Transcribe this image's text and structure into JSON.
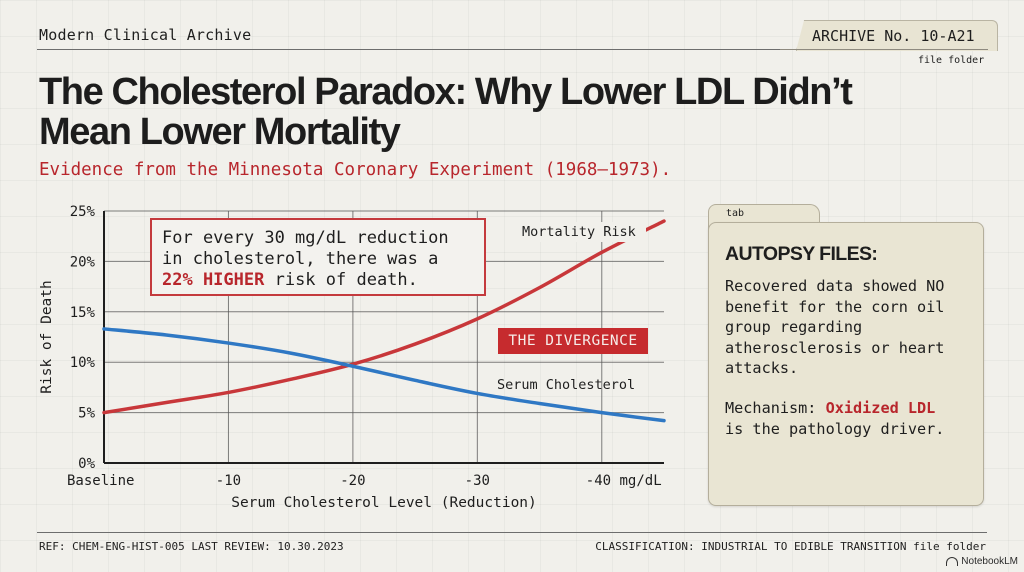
{
  "header": {
    "archive_name": "Modern Clinical Archive",
    "archive_number": "ARCHIVE No. 10-A21",
    "folder_note": "file folder"
  },
  "title": "The Cholesterol Paradox: Why Lower LDL Didn’t Mean Lower Mortality",
  "subtitle": "Evidence from the Minnesota Coronary Experiment (1968–1973).",
  "callout": {
    "text_pre": "For every 30 mg/dL reduction\nin cholesterol, there was a\n",
    "highlight": "22% HIGHER",
    "text_post": " risk of death."
  },
  "divergence_label": "THE DIVERGENCE",
  "colors": {
    "accent_red": "#c62b2e",
    "mortality_line": "#c8373a",
    "cholesterol_line": "#2f78c4",
    "card_bg": "#e9e5d3"
  },
  "chart_data": {
    "type": "line",
    "title": "",
    "xlabel": "Serum Cholesterol Level (Reduction)",
    "ylabel": "Risk of Death",
    "x_ticks": [
      {
        "value": 0,
        "label": "Baseline"
      },
      {
        "value": -10,
        "label": "-10"
      },
      {
        "value": -20,
        "label": "-20"
      },
      {
        "value": -30,
        "label": "-30"
      },
      {
        "value": -40,
        "label": "-40 mg/dL"
      }
    ],
    "y_ticks": [
      {
        "value": 0,
        "label": "0%"
      },
      {
        "value": 5,
        "label": "5%"
      },
      {
        "value": 10,
        "label": "10%"
      },
      {
        "value": 15,
        "label": "15%"
      },
      {
        "value": 20,
        "label": "20%"
      },
      {
        "value": 25,
        "label": "25%"
      }
    ],
    "xlim": [
      0,
      -45
    ],
    "ylim": [
      0,
      25
    ],
    "grid": true,
    "x": [
      0,
      -5,
      -10,
      -15,
      -20,
      -25,
      -30,
      -35,
      -40,
      -45
    ],
    "series": [
      {
        "name": "Mortality Risk",
        "label": "Mortality Risk",
        "color": "#c8373a",
        "values": [
          5.0,
          6.0,
          7.0,
          8.3,
          9.8,
          11.8,
          14.3,
          17.4,
          20.9,
          24.0
        ]
      },
      {
        "name": "Serum Cholesterol",
        "label": "Serum Cholesterol",
        "color": "#2f78c4",
        "values": [
          13.3,
          12.7,
          11.9,
          10.9,
          9.6,
          8.2,
          6.9,
          5.9,
          5.0,
          4.2
        ]
      }
    ]
  },
  "card": {
    "tab_label": "tab",
    "heading": "AUTOPSY FILES:",
    "body": "Recovered data showed NO\nbenefit for the corn oil\ngroup regarding\natherosclerosis or heart\nattacks.",
    "mechanism_pre": "Mechanism: ",
    "mechanism_highlight": "Oxidized LDL",
    "mechanism_post": "\nis the pathology driver."
  },
  "footer": {
    "left": "REF: CHEM-ENG-HIST-005  LAST REVIEW: 10.30.2023",
    "right": "CLASSIFICATION: INDUSTRIAL TO EDIBLE TRANSITION file folder",
    "brand": "NotebookLM"
  }
}
